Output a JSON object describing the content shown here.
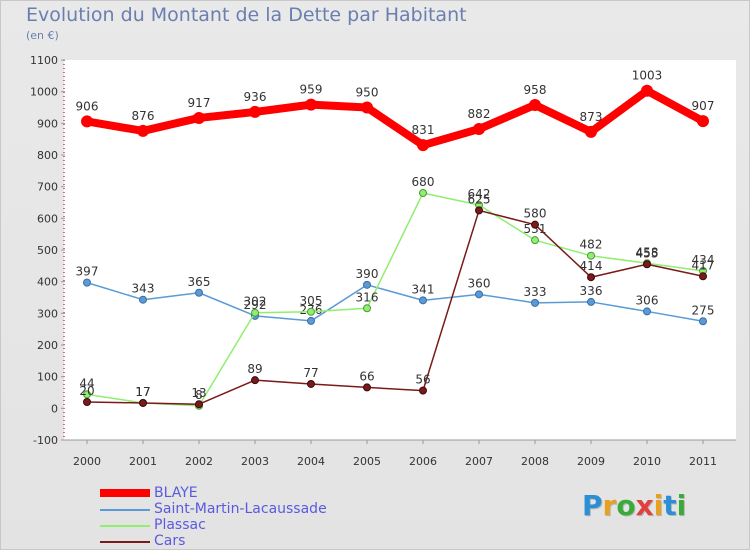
{
  "header": {
    "title": "Evolution du Montant de la Dette par Habitant",
    "unit": "(en €)"
  },
  "logo": {
    "letters": [
      {
        "ch": "P",
        "color": "#2a8fd4"
      },
      {
        "ch": "r",
        "color": "#e8a020"
      },
      {
        "ch": "o",
        "color": "#3aaa3a"
      },
      {
        "ch": "x",
        "color": "#e04040"
      },
      {
        "ch": "i",
        "color": "#e8a020"
      },
      {
        "ch": "t",
        "color": "#2a8fd4"
      },
      {
        "ch": "i",
        "color": "#3aaa3a"
      }
    ]
  },
  "chart_data": {
    "type": "line",
    "title": "Evolution du Montant de la Dette par Habitant",
    "ylabel": "(en €)",
    "x": [
      "2000",
      "2001",
      "2002",
      "2003",
      "2004",
      "2005",
      "2006",
      "2007",
      "2008",
      "2009",
      "2010",
      "2011"
    ],
    "ylim": [
      -100,
      1100
    ],
    "yticks": [
      -100,
      0,
      100,
      200,
      300,
      400,
      500,
      600,
      700,
      800,
      900,
      1000,
      1100
    ],
    "grid": false,
    "legend": "bottom-left",
    "series": [
      {
        "name": "BLAYE",
        "color": "#ff0000",
        "values": [
          906,
          876,
          917,
          936,
          959,
          950,
          831,
          882,
          958,
          873,
          1003,
          907
        ]
      },
      {
        "name": "Saint-Martin-Lacaussade",
        "color": "#5a9bd5",
        "values": [
          397,
          343,
          365,
          292,
          276,
          390,
          341,
          360,
          333,
          336,
          306,
          275
        ]
      },
      {
        "name": "Plassac",
        "color": "#90ee70",
        "values": [
          44,
          17,
          8,
          302,
          305,
          316,
          680,
          642,
          531,
          482,
          458,
          434
        ]
      },
      {
        "name": "Cars",
        "color": "#7a1a1a",
        "values": [
          20,
          17,
          13,
          89,
          77,
          66,
          56,
          625,
          580,
          414,
          455,
          417
        ]
      }
    ]
  }
}
